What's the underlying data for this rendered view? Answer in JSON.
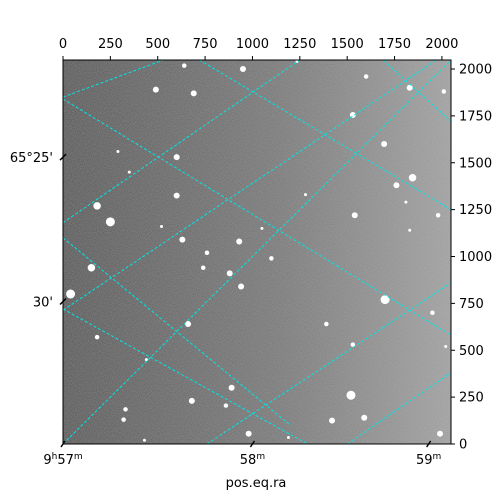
{
  "chart_data": {
    "type": "image-with-wcs-grid",
    "xlabel": "pos.eq.ra",
    "ylabel": "",
    "pixel_axes": {
      "x": {
        "range": [
          0,
          2048
        ],
        "ticks": [
          0,
          250,
          500,
          750,
          1000,
          1250,
          1500,
          1750,
          2000
        ]
      },
      "y": {
        "range": [
          0,
          2048
        ],
        "ticks": [
          0,
          250,
          500,
          750,
          1000,
          1250,
          1500,
          1750,
          2000
        ]
      }
    },
    "ra_ticks": [
      {
        "x": 0,
        "hours": "9",
        "minutes": "57",
        "label": "9h57m"
      },
      {
        "x": 1000,
        "hours": "",
        "minutes": "58",
        "label": "58m"
      },
      {
        "x": 1930,
        "hours": "",
        "minutes": "59",
        "label": "59m"
      }
    ],
    "dec_ticks": [
      {
        "y": 1530,
        "label": "65°25'"
      },
      {
        "y": 760,
        "label": "30'"
      }
    ],
    "grid": true,
    "grid_color": "#00e5e5",
    "grid_lines": [
      {
        "x": [
          -20,
          2048
        ],
        "y": [
          700,
          2100
        ]
      },
      {
        "x": [
          0,
          2048
        ],
        "y": [
          0,
          2048
        ]
      },
      {
        "x": [
          760,
          2048
        ],
        "y": [
          0,
          860
        ]
      },
      {
        "x": [
          1500,
          2048
        ],
        "y": [
          0,
          380
        ]
      },
      {
        "x": [
          0,
          530
        ],
        "y": [
          1850,
          2048
        ]
      },
      {
        "x": [
          0,
          1250
        ],
        "y": [
          1180,
          2048
        ]
      },
      {
        "x": [
          720,
          2048
        ],
        "y": [
          2048,
          1250
        ]
      },
      {
        "x": [
          1690,
          2048
        ],
        "y": [
          2048,
          1720
        ]
      },
      {
        "x": [
          0,
          2048
        ],
        "y": [
          1840,
          580
        ]
      },
      {
        "x": [
          0,
          1200
        ],
        "y": [
          1100,
          100
        ]
      },
      {
        "x": [
          0,
          1650
        ],
        "y": [
          720,
          -200
        ]
      }
    ],
    "background_gradient": [
      "#3e3e3e",
      "#6e6e6e",
      "#a0a0a0"
    ],
    "stars": [
      {
        "x": 640,
        "y": 2018,
        "r": 3
      },
      {
        "x": 950,
        "y": 2000,
        "r": 4
      },
      {
        "x": 1235,
        "y": 2040,
        "r": 2
      },
      {
        "x": 1600,
        "y": 1960,
        "r": 3
      },
      {
        "x": 1830,
        "y": 1900,
        "r": 4
      },
      {
        "x": 2010,
        "y": 1880,
        "r": 3
      },
      {
        "x": 490,
        "y": 1890,
        "r": 4
      },
      {
        "x": 690,
        "y": 1870,
        "r": 4
      },
      {
        "x": 1530,
        "y": 1755,
        "r": 4
      },
      {
        "x": 1695,
        "y": 1600,
        "r": 4
      },
      {
        "x": 600,
        "y": 1530,
        "r": 4
      },
      {
        "x": 350,
        "y": 1450,
        "r": 2
      },
      {
        "x": 1760,
        "y": 1380,
        "r": 4
      },
      {
        "x": 1845,
        "y": 1420,
        "r": 5
      },
      {
        "x": 600,
        "y": 1325,
        "r": 4
      },
      {
        "x": 180,
        "y": 1270,
        "r": 5
      },
      {
        "x": 250,
        "y": 1185,
        "r": 6
      },
      {
        "x": 1540,
        "y": 1220,
        "r": 4
      },
      {
        "x": 1980,
        "y": 1220,
        "r": 3
      },
      {
        "x": 630,
        "y": 1090,
        "r": 4
      },
      {
        "x": 930,
        "y": 1080,
        "r": 4
      },
      {
        "x": 760,
        "y": 1020,
        "r": 3
      },
      {
        "x": 1100,
        "y": 990,
        "r": 3
      },
      {
        "x": 150,
        "y": 940,
        "r": 5
      },
      {
        "x": 740,
        "y": 940,
        "r": 3
      },
      {
        "x": 880,
        "y": 910,
        "r": 4
      },
      {
        "x": 40,
        "y": 800,
        "r": 6
      },
      {
        "x": 940,
        "y": 840,
        "r": 4
      },
      {
        "x": 1700,
        "y": 770,
        "r": 6
      },
      {
        "x": 1950,
        "y": 700,
        "r": 3
      },
      {
        "x": 660,
        "y": 640,
        "r": 4
      },
      {
        "x": 1390,
        "y": 640,
        "r": 3
      },
      {
        "x": 180,
        "y": 570,
        "r": 3
      },
      {
        "x": 1530,
        "y": 530,
        "r": 3
      },
      {
        "x": 2020,
        "y": 520,
        "r": 2
      },
      {
        "x": 440,
        "y": 450,
        "r": 2
      },
      {
        "x": 890,
        "y": 300,
        "r": 4
      },
      {
        "x": 1520,
        "y": 260,
        "r": 6
      },
      {
        "x": 680,
        "y": 230,
        "r": 4
      },
      {
        "x": 860,
        "y": 205,
        "r": 3
      },
      {
        "x": 330,
        "y": 185,
        "r": 3
      },
      {
        "x": 1420,
        "y": 125,
        "r": 4
      },
      {
        "x": 1590,
        "y": 140,
        "r": 4
      },
      {
        "x": 320,
        "y": 130,
        "r": 3
      },
      {
        "x": 980,
        "y": 55,
        "r": 4
      },
      {
        "x": 1990,
        "y": 55,
        "r": 4
      },
      {
        "x": 430,
        "y": 20,
        "r": 2
      },
      {
        "x": 1190,
        "y": 35,
        "r": 2
      },
      {
        "x": 1810,
        "y": 1290,
        "r": 2
      },
      {
        "x": 1280,
        "y": 1330,
        "r": 2
      },
      {
        "x": 1050,
        "y": 1150,
        "r": 2
      },
      {
        "x": 520,
        "y": 1160,
        "r": 2
      },
      {
        "x": 290,
        "y": 1560,
        "r": 2
      },
      {
        "x": 1830,
        "y": 1140,
        "r": 2
      }
    ]
  }
}
